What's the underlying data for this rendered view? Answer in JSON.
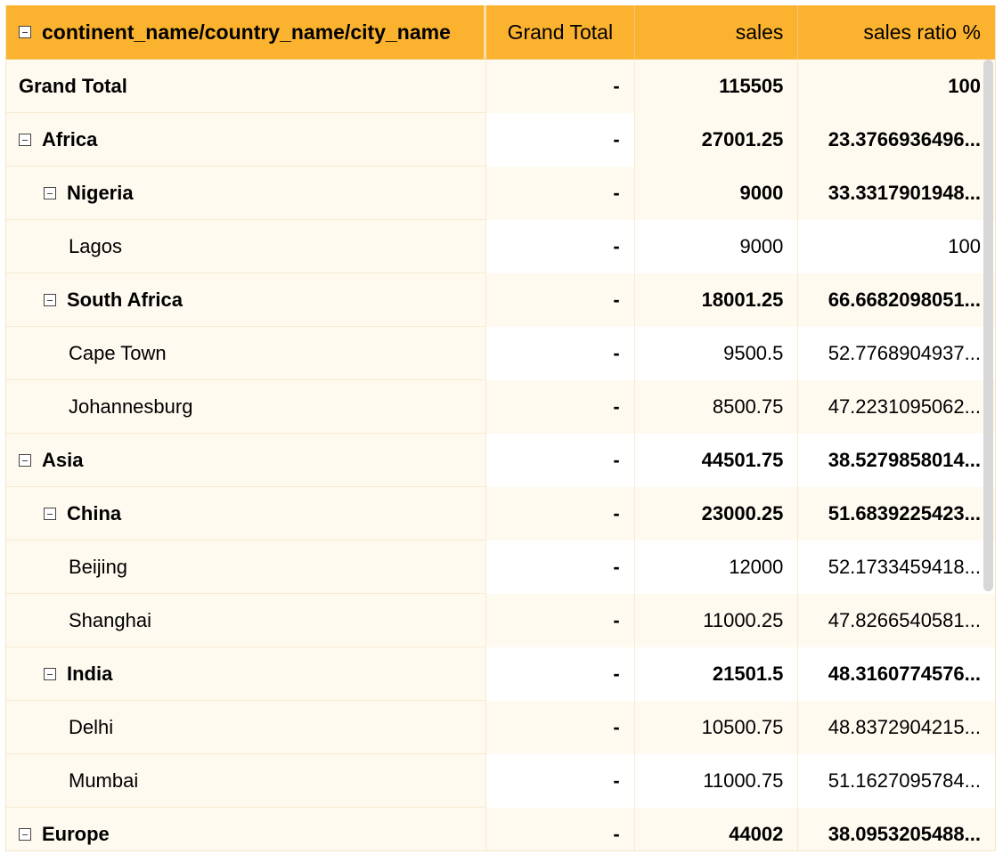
{
  "header": {
    "col0": "continent_name/country_name/city_name",
    "col1": "Grand Total",
    "col2": "sales",
    "col3": "sales ratio %"
  },
  "rows": [
    {
      "label": "Grand Total",
      "grand": "-",
      "sales": "115505",
      "ratio": "100"
    },
    {
      "label": "Africa",
      "grand": "-",
      "sales": "27001.25",
      "ratio": "23.3766936496..."
    },
    {
      "label": "Nigeria",
      "grand": "-",
      "sales": "9000",
      "ratio": "33.3317901948..."
    },
    {
      "label": "Lagos",
      "grand": "-",
      "sales": "9000",
      "ratio": "100"
    },
    {
      "label": "South Africa",
      "grand": "-",
      "sales": "18001.25",
      "ratio": "66.6682098051..."
    },
    {
      "label": "Cape Town",
      "grand": "-",
      "sales": "9500.5",
      "ratio": "52.7768904937..."
    },
    {
      "label": "Johannesburg",
      "grand": "-",
      "sales": "8500.75",
      "ratio": "47.2231095062..."
    },
    {
      "label": "Asia",
      "grand": "-",
      "sales": "44501.75",
      "ratio": "38.5279858014..."
    },
    {
      "label": "China",
      "grand": "-",
      "sales": "23000.25",
      "ratio": "51.6839225423..."
    },
    {
      "label": "Beijing",
      "grand": "-",
      "sales": "12000",
      "ratio": "52.1733459418..."
    },
    {
      "label": "Shanghai",
      "grand": "-",
      "sales": "11000.25",
      "ratio": "47.8266540581..."
    },
    {
      "label": "India",
      "grand": "-",
      "sales": "21501.5",
      "ratio": "48.3160774576..."
    },
    {
      "label": "Delhi",
      "grand": "-",
      "sales": "10500.75",
      "ratio": "48.8372904215..."
    },
    {
      "label": "Mumbai",
      "grand": "-",
      "sales": "11000.75",
      "ratio": "51.1627095784..."
    },
    {
      "label": "Europe",
      "grand": "-",
      "sales": "44002",
      "ratio": "38.0953205488..."
    }
  ]
}
